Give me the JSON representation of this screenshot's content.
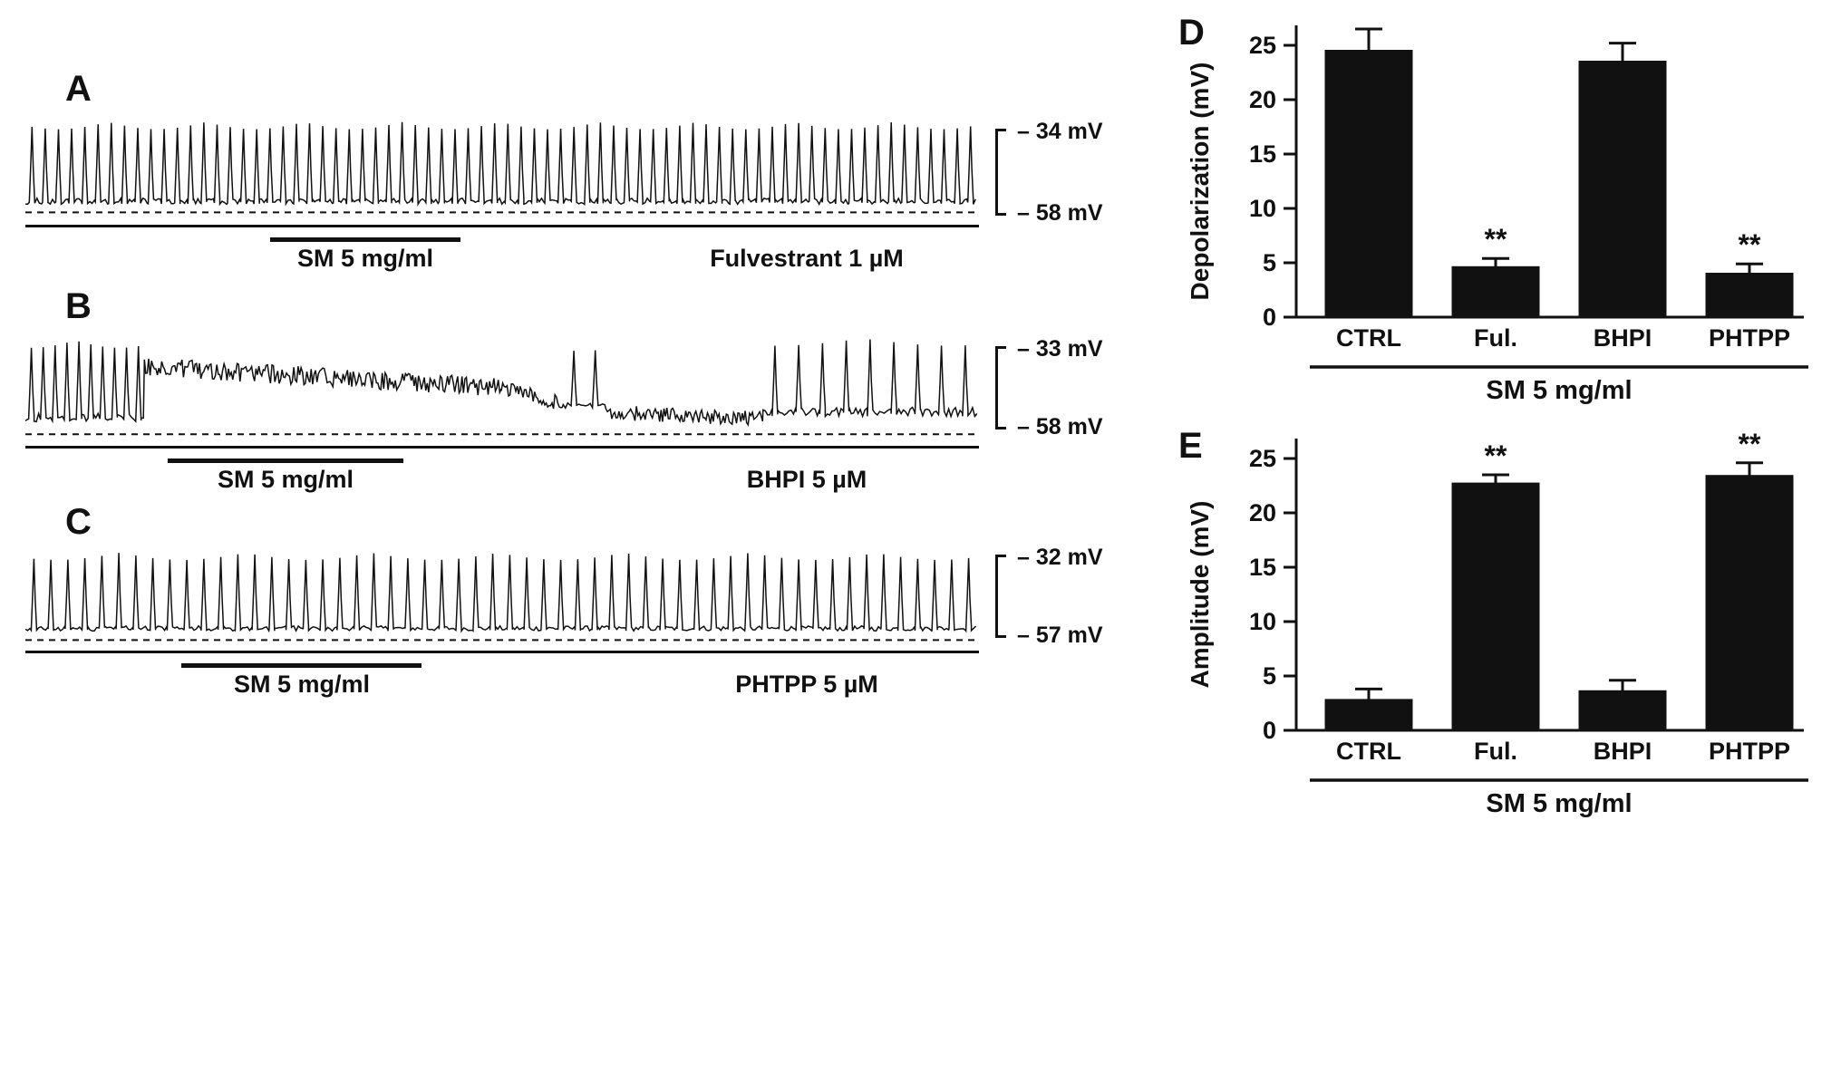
{
  "colors": {
    "ink": "#111111",
    "background": "#ffffff"
  },
  "panels": {
    "A": {
      "label": "A",
      "scale_top": "– 34 mV",
      "scale_bottom": "– 58 mV",
      "sm_label": "SM 5 mg/ml",
      "drug_label": "Fulvestrant 1 µM"
    },
    "B": {
      "label": "B",
      "scale_top": "– 33 mV",
      "scale_bottom": "– 58 mV",
      "sm_label": "SM 5 mg/ml",
      "drug_label": "BHPI 5 µM"
    },
    "C": {
      "label": "C",
      "scale_top": "– 32 mV",
      "scale_bottom": "– 57 mV",
      "sm_label": "SM 5 mg/ml",
      "drug_label": "PHTPP 5 µM"
    },
    "D": {
      "label": "D"
    },
    "E": {
      "label": "E"
    }
  },
  "chart_data": [
    {
      "panel": "A",
      "type": "line",
      "title": "Membrane potential recording, SM 5 mg/ml in presence of Fulvestrant 1 µM",
      "y_top_mV": -34,
      "y_bottom_mV": -58,
      "description": "Continuous regular spiking throughout; SM application does not abolish spikes",
      "seed": 7,
      "dash_y": 0.95,
      "segments": [
        {
          "from": 0.0,
          "to": 1.0,
          "kind": "spikes",
          "count": 72,
          "peak": 0.06,
          "base": 0.87,
          "noise": 0.06
        }
      ]
    },
    {
      "panel": "B",
      "type": "line",
      "title": "Membrane potential recording, SM 5 mg/ml in presence of BHPI 5 µM",
      "y_top_mV": -33,
      "y_bottom_mV": -58,
      "description": "Initial spiking, sustained noisy depolarization plateau after SM, gradual repolarization, spiking resumes late",
      "seed": 11,
      "dash_y": 0.95,
      "segments": [
        {
          "from": 0.0,
          "to": 0.125,
          "kind": "spikes",
          "count": 10,
          "peak": 0.05,
          "base": 0.83,
          "noise": 0.08
        },
        {
          "from": 0.125,
          "to": 0.5,
          "kind": "plateau",
          "start_level": 0.3,
          "end_level": 0.5,
          "noise": 0.09
        },
        {
          "from": 0.5,
          "to": 0.565,
          "kind": "plateau",
          "start_level": 0.5,
          "end_level": 0.66,
          "noise": 0.07
        },
        {
          "from": 0.565,
          "to": 0.61,
          "kind": "spikes",
          "count": 2,
          "peak": 0.08,
          "base": 0.7,
          "noise": 0.06
        },
        {
          "from": 0.61,
          "to": 0.775,
          "kind": "plateau",
          "start_level": 0.74,
          "end_level": 0.8,
          "noise": 0.07
        },
        {
          "from": 0.775,
          "to": 1.0,
          "kind": "spikes",
          "count": 9,
          "peak": 0.03,
          "base": 0.78,
          "noise": 0.09
        }
      ]
    },
    {
      "panel": "C",
      "type": "line",
      "title": "Membrane potential recording, SM 5 mg/ml in presence of PHTPP 5 µM",
      "y_top_mV": -32,
      "y_bottom_mV": -57,
      "description": "Continuous regular spiking throughout; SM application does not abolish spikes",
      "seed": 23,
      "dash_y": 0.95,
      "segments": [
        {
          "from": 0.0,
          "to": 1.0,
          "kind": "spikes",
          "count": 56,
          "peak": 0.09,
          "base": 0.86,
          "noise": 0.05
        }
      ]
    },
    {
      "panel": "D",
      "type": "bar",
      "categories": [
        "CTRL",
        "Ful.",
        "BHPI",
        "PHTPP"
      ],
      "values": [
        24.5,
        4.6,
        23.5,
        4.0
      ],
      "errors": [
        2.0,
        0.8,
        1.7,
        0.9
      ],
      "significance": [
        "",
        "**",
        "",
        "**"
      ],
      "ylabel": "Depolarization (mV)",
      "xlabel": "SM 5 mg/ml",
      "ylim": [
        0,
        25
      ],
      "yticks": [
        0,
        5,
        10,
        15,
        20,
        25
      ],
      "bar_color": "#111111"
    },
    {
      "panel": "E",
      "type": "bar",
      "categories": [
        "CTRL",
        "Ful.",
        "BHPI",
        "PHTPP"
      ],
      "values": [
        2.8,
        22.7,
        3.6,
        23.4
      ],
      "errors": [
        1.0,
        0.8,
        1.0,
        1.2
      ],
      "significance": [
        "",
        "**",
        "",
        "**"
      ],
      "ylabel": "Amplitude (mV)",
      "xlabel": "SM 5 mg/ml",
      "ylim": [
        0,
        25
      ],
      "yticks": [
        0,
        5,
        10,
        15,
        20,
        25
      ],
      "bar_color": "#111111"
    }
  ]
}
